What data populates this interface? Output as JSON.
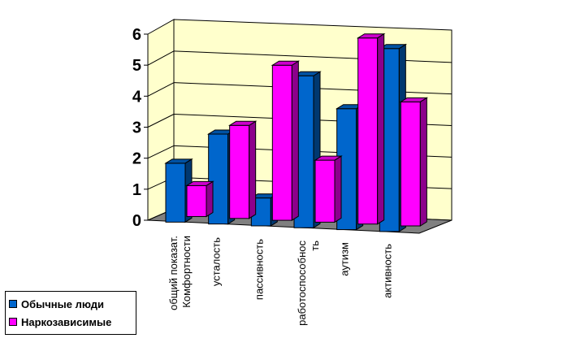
{
  "chart_data": {
    "type": "bar",
    "style": "3d-clustered-column",
    "categories": [
      [
        "общий показат.",
        "Комфортности"
      ],
      [
        "усталость"
      ],
      [
        "пассивность"
      ],
      [
        "работоспособнос",
        "ть"
      ],
      [
        "аутизм"
      ],
      [
        "активность"
      ]
    ],
    "series": [
      {
        "name": "Обычные люди",
        "color": "#0066CC",
        "values": [
          1.9,
          2.9,
          0.9,
          4.9,
          3.9,
          5.9
        ]
      },
      {
        "name": "Наркозависимые",
        "color": "#FF00FF",
        "values": [
          1.0,
          3.0,
          5.0,
          2.0,
          6.0,
          4.0
        ]
      }
    ],
    "ylim": [
      0,
      6
    ],
    "yticks": [
      "0",
      "1",
      "2",
      "3",
      "4",
      "5",
      "6"
    ],
    "grid": true,
    "wall_color": "#FFFFCC",
    "floor_color": "#808080",
    "legend_position": "bottom-left",
    "title": "",
    "xlabel": "",
    "ylabel": ""
  }
}
